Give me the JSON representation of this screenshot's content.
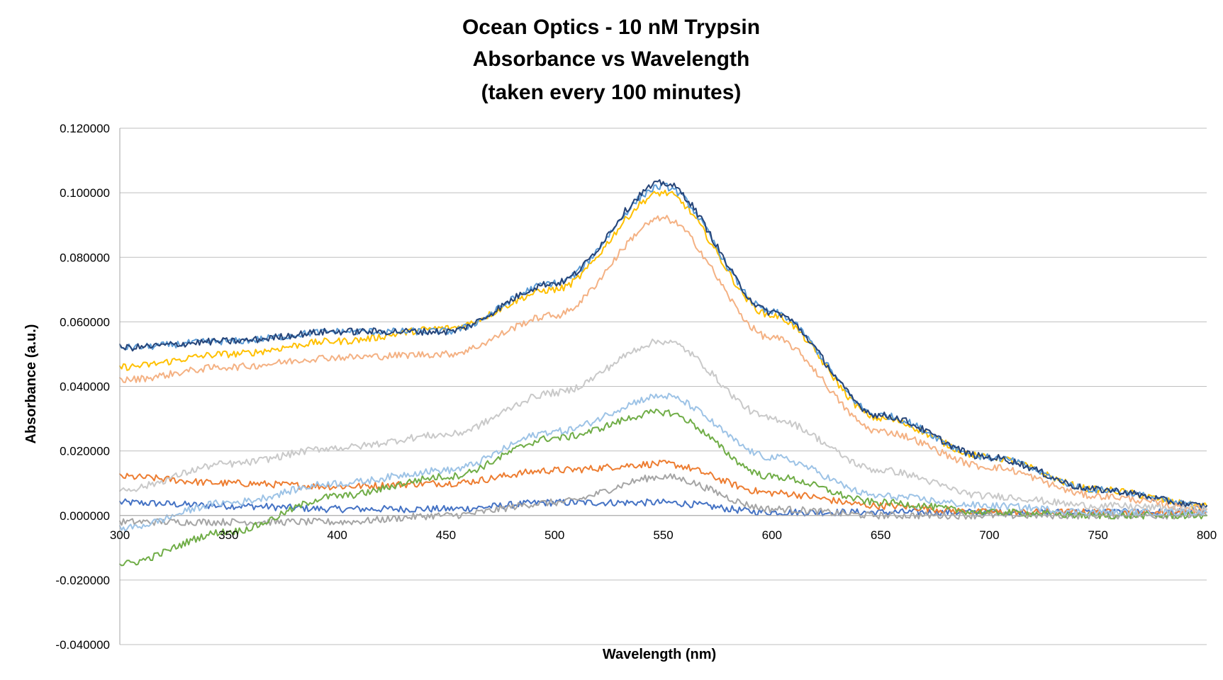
{
  "chart_data": {
    "type": "line",
    "title_lines": [
      "Ocean Optics - 10 nM Trypsin",
      "Absorbance vs Wavelength",
      "(taken every 100 minutes)"
    ],
    "xlabel": "Wavelength (nm)",
    "ylabel": "Absorbance (a.u.)",
    "xlim": [
      300,
      800
    ],
    "ylim": [
      -0.04,
      0.12
    ],
    "x_ticks": [
      300,
      350,
      400,
      450,
      500,
      550,
      600,
      650,
      700,
      750,
      800
    ],
    "x_tick_labels": [
      "300",
      "350",
      "400",
      "450",
      "500",
      "550",
      "600",
      "650",
      "700",
      "750",
      "800"
    ],
    "y_ticks": [
      -0.04,
      -0.02,
      0,
      0.02,
      0.04,
      0.06,
      0.08,
      0.1,
      0.12
    ],
    "y_tick_labels": [
      "-0.040000",
      "-0.020000",
      "0.000000",
      "0.020000",
      "0.040000",
      "0.060000",
      "0.080000",
      "0.100000",
      "0.120000"
    ],
    "grid": "horizontal",
    "legend": "none",
    "series": [
      {
        "color": "#4472c4",
        "x": [
          300,
          350,
          400,
          450,
          500,
          550,
          600,
          650,
          700,
          750,
          800
        ],
        "values": [
          0.004,
          0.003,
          0.002,
          0.002,
          0.004,
          0.004,
          0.001,
          0.001,
          0.001,
          0.001,
          0.001
        ]
      },
      {
        "color": "#ed7d31",
        "x": [
          300,
          350,
          400,
          450,
          500,
          550,
          600,
          650,
          700,
          750,
          800
        ],
        "values": [
          0.012,
          0.01,
          0.009,
          0.01,
          0.014,
          0.016,
          0.007,
          0.003,
          0.001,
          0.001,
          0.001
        ]
      },
      {
        "color": "#a5a5a5",
        "x": [
          300,
          350,
          400,
          450,
          500,
          550,
          600,
          650,
          700,
          750,
          800
        ],
        "values": [
          -0.002,
          -0.002,
          -0.002,
          0.0,
          0.004,
          0.012,
          0.002,
          0.0,
          0.0,
          0.0,
          0.0
        ]
      },
      {
        "color": "#ffc000",
        "x": [
          300,
          350,
          400,
          450,
          500,
          550,
          600,
          650,
          700,
          750,
          800
        ],
        "values": [
          0.046,
          0.05,
          0.054,
          0.058,
          0.07,
          0.1,
          0.062,
          0.03,
          0.018,
          0.008,
          0.003
        ]
      },
      {
        "color": "#5b9bd5",
        "x": [
          300,
          350,
          400,
          450,
          500,
          550,
          600,
          650,
          700,
          750,
          800
        ],
        "values": [
          0.052,
          0.054,
          0.057,
          0.057,
          0.072,
          0.102,
          0.063,
          0.031,
          0.018,
          0.008,
          0.003
        ]
      },
      {
        "color": "#70ad47",
        "x": [
          300,
          350,
          400,
          450,
          500,
          550,
          600,
          650,
          700,
          750,
          800
        ],
        "values": [
          -0.015,
          -0.005,
          0.006,
          0.012,
          0.024,
          0.032,
          0.012,
          0.004,
          0.001,
          0.0,
          0.0
        ]
      },
      {
        "color": "#264478",
        "x": [
          300,
          350,
          400,
          450,
          500,
          550,
          600,
          650,
          700,
          750,
          800
        ],
        "values": [
          0.052,
          0.054,
          0.057,
          0.057,
          0.072,
          0.103,
          0.063,
          0.031,
          0.018,
          0.008,
          0.003
        ]
      },
      {
        "color": "#f4b183",
        "x": [
          300,
          350,
          400,
          450,
          500,
          550,
          600,
          650,
          700,
          750,
          800
        ],
        "values": [
          0.042,
          0.046,
          0.049,
          0.05,
          0.062,
          0.092,
          0.055,
          0.026,
          0.015,
          0.006,
          0.002
        ]
      },
      {
        "color": "#c9c9c9",
        "x": [
          300,
          350,
          400,
          450,
          500,
          550,
          600,
          650,
          700,
          750,
          800
        ],
        "values": [
          0.008,
          0.016,
          0.021,
          0.025,
          0.038,
          0.054,
          0.03,
          0.014,
          0.006,
          0.003,
          0.002
        ]
      },
      {
        "color": "#9dc3e6",
        "x": [
          300,
          350,
          400,
          450,
          500,
          550,
          600,
          650,
          700,
          750,
          800
        ],
        "values": [
          -0.004,
          0.004,
          0.01,
          0.014,
          0.026,
          0.037,
          0.018,
          0.006,
          0.003,
          0.001,
          0.001
        ]
      }
    ]
  }
}
